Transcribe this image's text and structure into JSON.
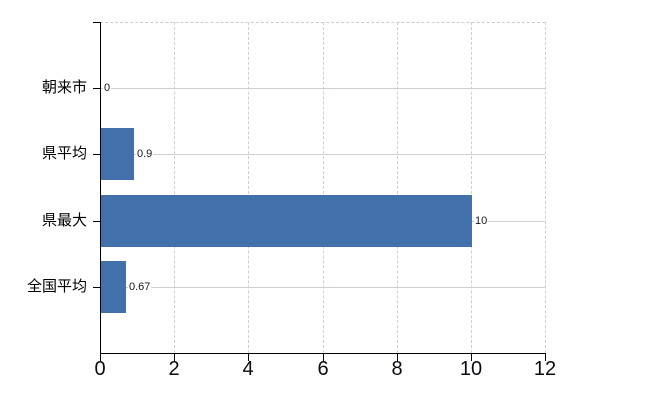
{
  "chart_data": {
    "type": "bar",
    "orientation": "horizontal",
    "title": "",
    "xlabel": "",
    "ylabel": "",
    "categories": [
      "朝来市",
      "県平均",
      "県最大",
      "全国平均"
    ],
    "values": [
      0,
      0.9,
      10,
      0.67
    ],
    "value_labels": [
      "0",
      "0.9",
      "10",
      "0.67"
    ],
    "xlim": [
      0,
      12
    ],
    "x_ticks": [
      0,
      2,
      4,
      6,
      8,
      10,
      12
    ],
    "x_tick_labels": [
      "0",
      "2",
      "4",
      "6",
      "8",
      "10",
      "12"
    ],
    "grid": true,
    "legend": "none",
    "colors": {
      "bar": "#4270ab",
      "h_gridline": "#ccd1c9",
      "v_gridline": "#d2cdd2",
      "plot_border": "#cfcccf",
      "axis": "#000000",
      "text": "#000000",
      "background": "#ffffff"
    }
  }
}
